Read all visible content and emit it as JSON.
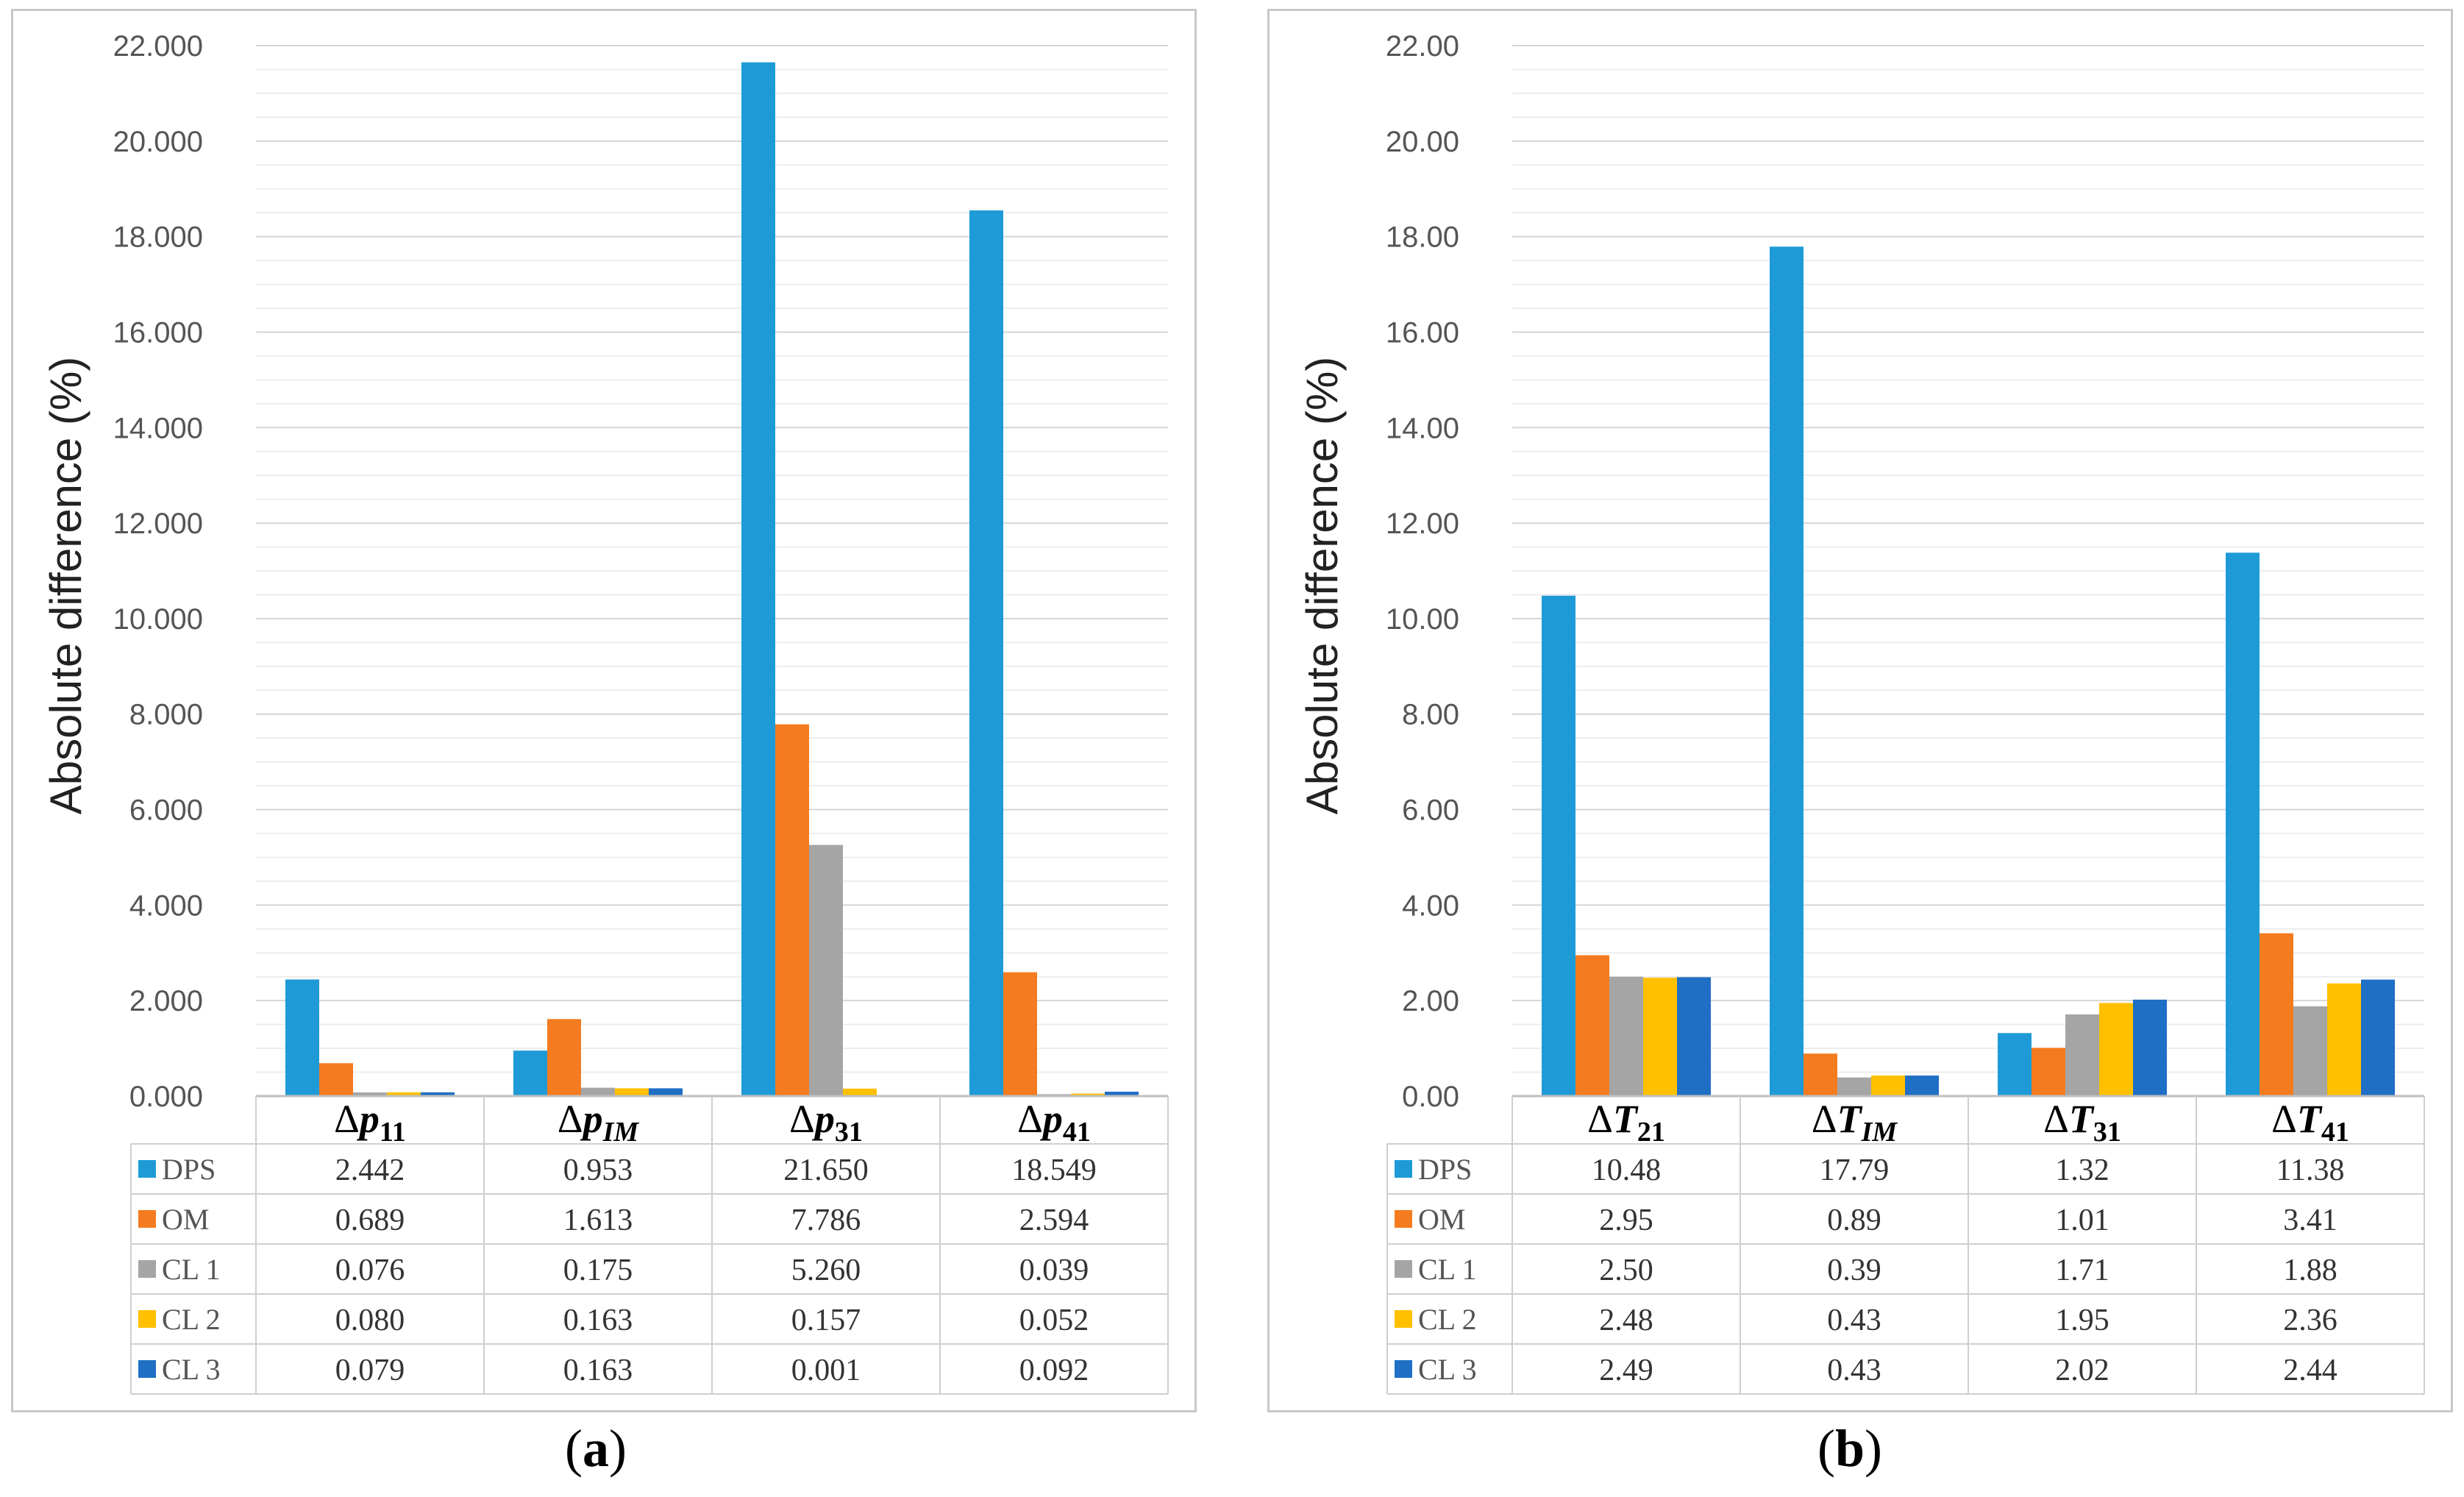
{
  "chart_data": [
    {
      "type": "bar",
      "panel_label": "a",
      "ylabel": "Absolute difference (%)",
      "ylim": [
        0,
        22
      ],
      "yticks": [
        "0.000",
        "2.000",
        "4.000",
        "6.000",
        "8.000",
        "10.000",
        "12.000",
        "14.000",
        "16.000",
        "18.000",
        "20.000",
        "22.000"
      ],
      "grid": true,
      "categories": [
        {
          "sym": "Δ",
          "var": "p",
          "sub": "11"
        },
        {
          "sym": "Δ",
          "var": "p",
          "sub": "IM"
        },
        {
          "sym": "Δ",
          "var": "p",
          "sub": "31"
        },
        {
          "sym": "Δ",
          "var": "p",
          "sub": "41"
        }
      ],
      "series": [
        {
          "name": "DPS",
          "color": "#1e9bd7",
          "values": [
            2.442,
            0.953,
            21.65,
            18.549
          ],
          "labels": [
            "2.442",
            "0.953",
            "21.650",
            "18.549"
          ]
        },
        {
          "name": "OM",
          "color": "#f47b20",
          "values": [
            0.689,
            1.613,
            7.786,
            2.594
          ],
          "labels": [
            "0.689",
            "1.613",
            "7.786",
            "2.594"
          ]
        },
        {
          "name": "CL 1",
          "color": "#a5a5a5",
          "values": [
            0.076,
            0.175,
            5.26,
            0.039
          ],
          "labels": [
            "0.076",
            "0.175",
            "5.260",
            "0.039"
          ]
        },
        {
          "name": "CL 2",
          "color": "#ffc000",
          "values": [
            0.08,
            0.163,
            0.157,
            0.052
          ],
          "labels": [
            "0.080",
            "0.163",
            "0.157",
            "0.052"
          ]
        },
        {
          "name": "CL 3",
          "color": "#1f6fc5",
          "values": [
            0.079,
            0.163,
            0.001,
            0.092
          ],
          "labels": [
            "0.079",
            "0.163",
            "0.001",
            "0.092"
          ]
        }
      ]
    },
    {
      "type": "bar",
      "panel_label": "b",
      "ylabel": "Absolute difference (%)",
      "ylim": [
        0,
        22
      ],
      "yticks": [
        "0.00",
        "2.00",
        "4.00",
        "6.00",
        "8.00",
        "10.00",
        "12.00",
        "14.00",
        "16.00",
        "18.00",
        "20.00",
        "22.00"
      ],
      "grid": true,
      "categories": [
        {
          "sym": "Δ",
          "var": "T",
          "sub": "21"
        },
        {
          "sym": "Δ",
          "var": "T",
          "sub": "IM"
        },
        {
          "sym": "Δ",
          "var": "T",
          "sub": "31"
        },
        {
          "sym": "Δ",
          "var": "T",
          "sub": "41"
        }
      ],
      "series": [
        {
          "name": "DPS",
          "color": "#1e9bd7",
          "values": [
            10.48,
            17.79,
            1.32,
            11.38
          ],
          "labels": [
            "10.48",
            "17.79",
            "1.32",
            "11.38"
          ]
        },
        {
          "name": "OM",
          "color": "#f47b20",
          "values": [
            2.95,
            0.89,
            1.01,
            3.41
          ],
          "labels": [
            "2.95",
            "0.89",
            "1.01",
            "3.41"
          ]
        },
        {
          "name": "CL 1",
          "color": "#a5a5a5",
          "values": [
            2.5,
            0.39,
            1.71,
            1.88
          ],
          "labels": [
            "2.50",
            "0.39",
            "1.71",
            "1.88"
          ]
        },
        {
          "name": "CL 2",
          "color": "#ffc000",
          "values": [
            2.48,
            0.43,
            1.95,
            2.36
          ],
          "labels": [
            "2.48",
            "0.43",
            "1.95",
            "2.36"
          ]
        },
        {
          "name": "CL 3",
          "color": "#1f6fc5",
          "values": [
            2.49,
            0.43,
            2.02,
            2.44
          ],
          "labels": [
            "2.49",
            "0.43",
            "2.02",
            "2.44"
          ]
        }
      ]
    }
  ],
  "captions": {
    "a": {
      "open": "(",
      "letter": "a",
      "close": ")"
    },
    "b": {
      "open": "(",
      "letter": "b",
      "close": ")"
    }
  }
}
